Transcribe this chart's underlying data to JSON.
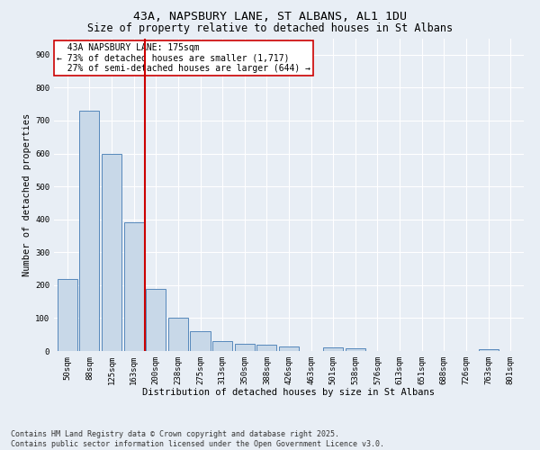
{
  "title_line1": "43A, NAPSBURY LANE, ST ALBANS, AL1 1DU",
  "title_line2": "Size of property relative to detached houses in St Albans",
  "xlabel": "Distribution of detached houses by size in St Albans",
  "ylabel": "Number of detached properties",
  "categories": [
    "50sqm",
    "88sqm",
    "125sqm",
    "163sqm",
    "200sqm",
    "238sqm",
    "275sqm",
    "313sqm",
    "350sqm",
    "388sqm",
    "426sqm",
    "463sqm",
    "501sqm",
    "538sqm",
    "576sqm",
    "613sqm",
    "651sqm",
    "688sqm",
    "726sqm",
    "763sqm",
    "801sqm"
  ],
  "values": [
    220,
    730,
    600,
    390,
    190,
    100,
    60,
    30,
    22,
    18,
    15,
    0,
    10,
    8,
    0,
    0,
    0,
    0,
    0,
    5,
    0
  ],
  "bar_color": "#c8d8e8",
  "bar_edge_color": "#5588bb",
  "vline_x_index": 3.5,
  "vline_color": "#cc0000",
  "annotation_text": "  43A NAPSBURY LANE: 175sqm\n← 73% of detached houses are smaller (1,717)\n  27% of semi-detached houses are larger (644) →",
  "annotation_box_color": "#ffffff",
  "annotation_box_edge": "#cc0000",
  "ylim": [
    0,
    950
  ],
  "yticks": [
    0,
    100,
    200,
    300,
    400,
    500,
    600,
    700,
    800,
    900
  ],
  "background_color": "#e8eef5",
  "grid_color": "#ffffff",
  "footnote": "Contains HM Land Registry data © Crown copyright and database right 2025.\nContains public sector information licensed under the Open Government Licence v3.0.",
  "title_fontsize": 9.5,
  "subtitle_fontsize": 8.5,
  "xlabel_fontsize": 7.5,
  "ylabel_fontsize": 7.5,
  "tick_fontsize": 6.5,
  "annotation_fontsize": 7,
  "footnote_fontsize": 6
}
